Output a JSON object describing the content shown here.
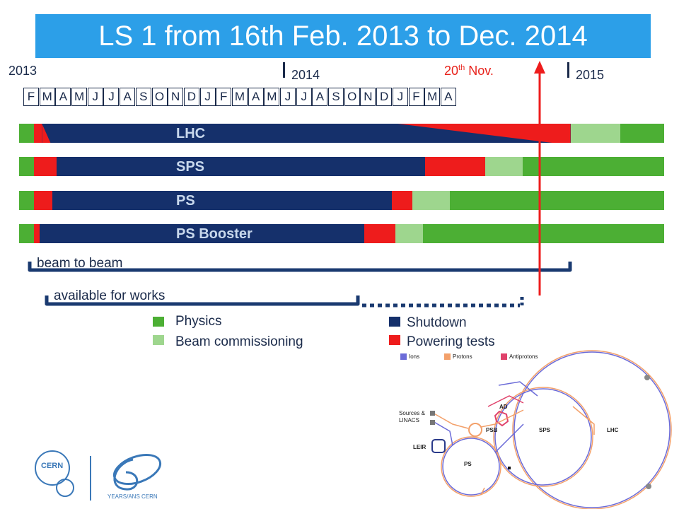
{
  "title": "LS 1 from 16th Feb. 2013 to Dec. 2014",
  "years": [
    "2013",
    "2014",
    "2015"
  ],
  "marker": {
    "label_main": "20",
    "label_sup": "th",
    "label_rest": " Nov."
  },
  "months": [
    "F",
    "M",
    "A",
    "M",
    "J",
    "J",
    "A",
    "S",
    "O",
    "N",
    "D",
    "J",
    "F",
    "M",
    "A",
    "M",
    "J",
    "J",
    "A",
    "S",
    "O",
    "N",
    "D",
    "J",
    "F",
    "M",
    "A"
  ],
  "colors": {
    "physics": "#4caf34",
    "beam_commissioning": "#9ed68e",
    "shutdown": "#15306b",
    "powering_tests": "#ee1c1c",
    "title_bg": "#2c9fe8"
  },
  "machines": [
    {
      "name": "LHC"
    },
    {
      "name": "SPS"
    },
    {
      "name": "PS"
    },
    {
      "name": "PS Booster"
    }
  ],
  "spans": {
    "beam_to_beam": "beam to beam",
    "available_for_works": "available for works"
  },
  "legend": {
    "physics": "Physics",
    "beam_commissioning": "Beam commissioning",
    "shutdown": "Shutdown",
    "powering_tests": "Powering tests"
  },
  "accelerator_diagram": {
    "key": {
      "ions": "Ions",
      "protons": "Protons",
      "antiprotons": "Antiprotons"
    },
    "labels": {
      "sources": "Sources &",
      "linacs": "LINACS",
      "leir": "LEIR",
      "ps": "PS",
      "psb": "PSB",
      "sps": "SPS",
      "lhc": "LHC",
      "ad": "AD"
    },
    "key_colors": {
      "ions": "#6b6bd8",
      "protons": "#f3a06a",
      "antiprotons": "#e0426b"
    }
  },
  "logo": {
    "cern": "CERN",
    "anniversary": "YEARS/ANS CERN"
  }
}
